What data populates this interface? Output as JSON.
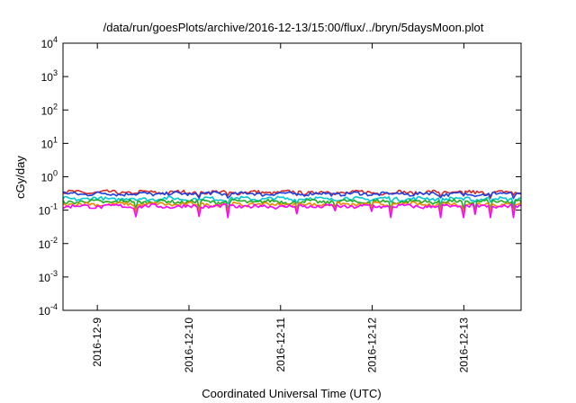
{
  "chart_data": {
    "type": "line",
    "title": "/data/run/goesPlots/archive/2016-12-13/15:00/flux/../bryn/5daysMoon.plot",
    "xlabel": "Coordinated Universal Time (UTC)",
    "ylabel": "cGy/day",
    "yscale": "log",
    "ylim": [
      0.0001,
      10000
    ],
    "xlim": [
      "2016-12-08T15:00",
      "2016-12-13T15:00"
    ],
    "grid": false,
    "legend": "none",
    "y_ticks": [
      {
        "value": 0.0001,
        "base": "10",
        "exp": "-4"
      },
      {
        "value": 0.001,
        "base": "10",
        "exp": "-3"
      },
      {
        "value": 0.01,
        "base": "10",
        "exp": "-2"
      },
      {
        "value": 0.1,
        "base": "10",
        "exp": "-1"
      },
      {
        "value": 1,
        "base": "10",
        "exp": "0"
      },
      {
        "value": 10,
        "base": "10",
        "exp": "1"
      },
      {
        "value": 100,
        "base": "10",
        "exp": "2"
      },
      {
        "value": 1000,
        "base": "10",
        "exp": "3"
      },
      {
        "value": 10000,
        "base": "10",
        "exp": "4"
      }
    ],
    "x_ticks": [
      {
        "value": "2016-12-09T00:00",
        "label": "2016-12-9"
      },
      {
        "value": "2016-12-10T00:00",
        "label": "2016-12-10"
      },
      {
        "value": "2016-12-11T00:00",
        "label": "2016-12-11"
      },
      {
        "value": "2016-12-12T00:00",
        "label": "2016-12-12"
      },
      {
        "value": "2016-12-13T00:00",
        "label": "2016-12-13"
      }
    ],
    "series": [
      {
        "color": "#d62728",
        "typical": 0.34,
        "low": 0.2,
        "high": 0.43
      },
      {
        "color": "#1f3fe0",
        "typical": 0.31,
        "low": 0.18,
        "high": 0.4
      },
      {
        "color": "#00c8d0",
        "typical": 0.22,
        "low": 0.13,
        "high": 0.28
      },
      {
        "color": "#22aa22",
        "typical": 0.18,
        "low": 0.11,
        "high": 0.22
      },
      {
        "color": "#ee8800",
        "typical": 0.15,
        "low": 0.09,
        "high": 0.18
      },
      {
        "color": "#ff00ff",
        "typical": 0.13,
        "low": 0.06,
        "high": 0.16
      }
    ]
  }
}
